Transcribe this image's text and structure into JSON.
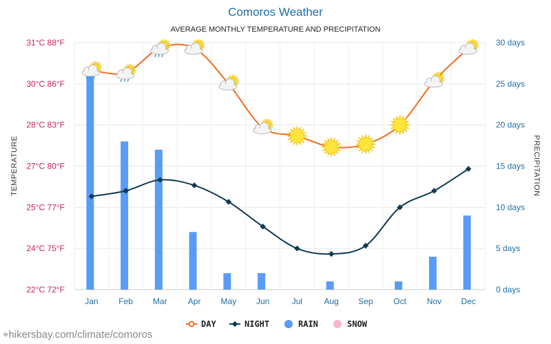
{
  "chart_data": {
    "type": "line",
    "title": "Comoros Weather",
    "subtitle": "AVERAGE MONTHLY TEMPERATURE AND PRECIPITATION",
    "categories": [
      "Jan",
      "Feb",
      "Mar",
      "Apr",
      "May",
      "Jun",
      "Jul",
      "Aug",
      "Sep",
      "Oct",
      "Nov",
      "Dec"
    ],
    "ylabel": "TEMPERATURE",
    "ylabel_right": "PRECIPITATION",
    "y_left_ticks": [
      "22°C 72°F",
      "24°C 75°F",
      "25°C 77°F",
      "27°C 80°F",
      "28°C 83°F",
      "30°C 86°F",
      "31°C 88°F"
    ],
    "y_right_ticks": [
      "0 days",
      "5 days",
      "10 days",
      "15 days",
      "20 days",
      "25 days",
      "30 days"
    ],
    "ylim": [
      22,
      31
    ],
    "y2lim": [
      0,
      30
    ],
    "series": [
      {
        "name": "DAY",
        "type": "line",
        "color": "#f26b1d",
        "values": [
          30.0,
          29.9,
          30.8,
          30.8,
          29.5,
          27.9,
          27.6,
          27.2,
          27.3,
          28.0,
          29.6,
          30.8
        ]
      },
      {
        "name": "NIGHT",
        "type": "line",
        "color": "#0d3a52",
        "values": [
          25.4,
          25.6,
          26.0,
          25.8,
          25.2,
          24.3,
          23.5,
          23.3,
          23.6,
          25.0,
          25.6,
          26.4
        ]
      },
      {
        "name": "RAIN",
        "type": "bar",
        "color": "#5a9cf5",
        "axis": "right",
        "values": [
          26,
          18,
          17,
          7,
          2,
          2,
          0,
          1,
          0,
          1,
          4,
          9
        ]
      },
      {
        "name": "SNOW",
        "type": "bar",
        "color": "#f7b6c8",
        "axis": "right",
        "values": [
          0,
          0,
          0,
          0,
          0,
          0,
          0,
          0,
          0,
          0,
          0,
          0
        ]
      }
    ],
    "weather_icons": [
      "cloud-sun-rain",
      "cloud-sun-rain",
      "cloud-sun-rain",
      "cloud-sun",
      "cloud-sun",
      "cloud-sun",
      "sun",
      "sun",
      "sun",
      "sun",
      "cloud-sun",
      "cloud-sun"
    ],
    "grid": true,
    "legend_position": "bottom"
  },
  "footer": {
    "source": "hikersbay.com/climate/comoros"
  }
}
